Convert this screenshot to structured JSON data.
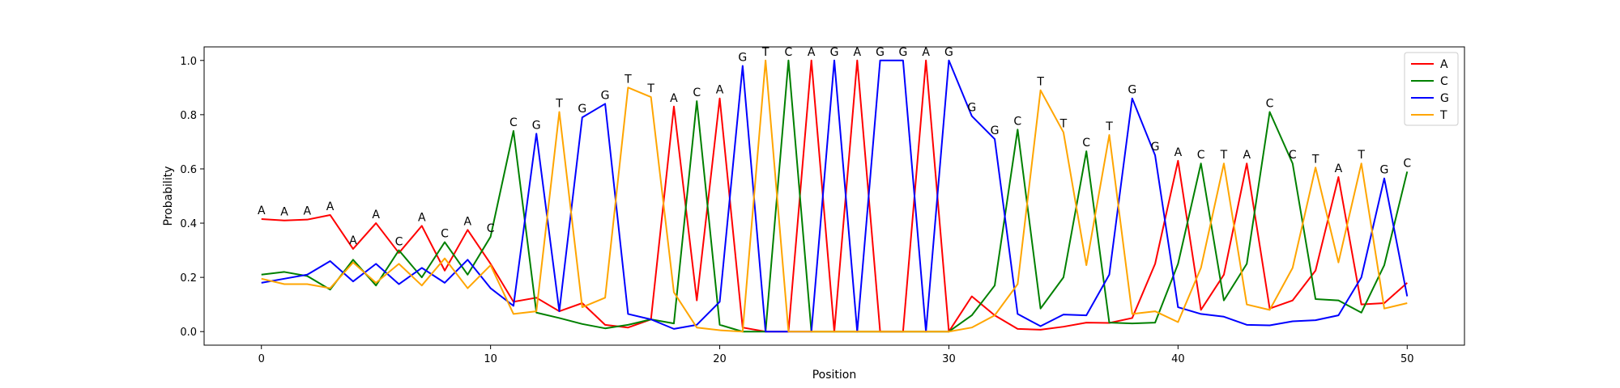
{
  "chart_data": {
    "type": "line",
    "xlabel": "Position",
    "ylabel": "Probability",
    "xlim": [
      -2.5,
      52.5
    ],
    "ylim": [
      -0.05,
      1.05
    ],
    "xticks": [
      0,
      10,
      20,
      30,
      40,
      50
    ],
    "yticks": [
      0.0,
      0.2,
      0.4,
      0.6,
      0.8,
      1.0
    ],
    "xtick_labels": [
      "0",
      "10",
      "20",
      "30",
      "40",
      "50"
    ],
    "ytick_labels": [
      "0.0",
      "0.2",
      "0.4",
      "0.6",
      "0.8",
      "1.0"
    ],
    "grid": false,
    "legend_position": "top-right",
    "x": [
      0,
      1,
      2,
      3,
      4,
      5,
      6,
      7,
      8,
      9,
      10,
      11,
      12,
      13,
      14,
      15,
      16,
      17,
      18,
      19,
      20,
      21,
      22,
      23,
      24,
      25,
      26,
      27,
      28,
      29,
      30,
      31,
      32,
      33,
      34,
      35,
      36,
      37,
      38,
      39,
      40,
      41,
      42,
      43,
      44,
      45,
      46,
      47,
      48,
      49,
      50
    ],
    "series": [
      {
        "name": "A",
        "color": "#ff0000",
        "values": [
          0.415,
          0.41,
          0.413,
          0.43,
          0.305,
          0.4,
          0.29,
          0.39,
          0.225,
          0.375,
          0.25,
          0.11,
          0.125,
          0.075,
          0.105,
          0.025,
          0.015,
          0.045,
          0.83,
          0.115,
          0.86,
          0.015,
          0.0,
          0.0,
          1.0,
          0.0,
          1.0,
          0.0,
          0.0,
          1.0,
          0.0,
          0.13,
          0.06,
          0.01,
          0.007,
          0.018,
          0.033,
          0.032,
          0.05,
          0.25,
          0.63,
          0.08,
          0.21,
          0.62,
          0.085,
          0.115,
          0.225,
          0.57,
          0.1,
          0.105,
          0.18
        ]
      },
      {
        "name": "C",
        "color": "#008000",
        "values": [
          0.21,
          0.22,
          0.205,
          0.155,
          0.265,
          0.17,
          0.3,
          0.2,
          0.33,
          0.21,
          0.35,
          0.74,
          0.07,
          0.05,
          0.028,
          0.012,
          0.025,
          0.045,
          0.03,
          0.85,
          0.025,
          0.0,
          0.0,
          1.0,
          0.0,
          0.0,
          0.0,
          0.0,
          0.0,
          0.0,
          0.0,
          0.06,
          0.17,
          0.745,
          0.085,
          0.2,
          0.665,
          0.033,
          0.03,
          0.033,
          0.25,
          0.62,
          0.115,
          0.25,
          0.81,
          0.62,
          0.12,
          0.115,
          0.07,
          0.245,
          0.59
        ]
      },
      {
        "name": "G",
        "color": "#0000ff",
        "values": [
          0.18,
          0.195,
          0.21,
          0.26,
          0.185,
          0.25,
          0.175,
          0.235,
          0.18,
          0.265,
          0.16,
          0.095,
          0.73,
          0.075,
          0.79,
          0.84,
          0.065,
          0.045,
          0.01,
          0.025,
          0.11,
          0.98,
          0.0,
          0.0,
          0.0,
          1.0,
          0.0,
          1.0,
          1.0,
          0.0,
          1.0,
          0.795,
          0.71,
          0.065,
          0.02,
          0.063,
          0.06,
          0.21,
          0.86,
          0.65,
          0.09,
          0.065,
          0.055,
          0.025,
          0.023,
          0.038,
          0.042,
          0.06,
          0.2,
          0.565,
          0.13
        ]
      },
      {
        "name": "T",
        "color": "#ffa500",
        "values": [
          0.195,
          0.175,
          0.175,
          0.16,
          0.255,
          0.18,
          0.25,
          0.17,
          0.27,
          0.16,
          0.245,
          0.065,
          0.075,
          0.81,
          0.09,
          0.125,
          0.9,
          0.865,
          0.145,
          0.015,
          0.005,
          0.0,
          1.0,
          0.0,
          0.0,
          0.0,
          0.0,
          0.0,
          0.0,
          0.0,
          0.0,
          0.015,
          0.06,
          0.175,
          0.89,
          0.735,
          0.245,
          0.725,
          0.065,
          0.075,
          0.035,
          0.235,
          0.62,
          0.1,
          0.08,
          0.235,
          0.605,
          0.255,
          0.62,
          0.085,
          0.105
        ]
      }
    ],
    "annotations": [
      "A",
      "A",
      "A",
      "A",
      "A",
      "A",
      "C",
      "A",
      "C",
      "A",
      "C",
      "C",
      "G",
      "T",
      "G",
      "G",
      "T",
      "T",
      "A",
      "C",
      "A",
      "G",
      "T",
      "C",
      "A",
      "G",
      "A",
      "G",
      "G",
      "A",
      "G",
      "G",
      "G",
      "C",
      "T",
      "T",
      "C",
      "T",
      "G",
      "G",
      "A",
      "C",
      "T",
      "A",
      "C",
      "C",
      "T",
      "A",
      "T",
      "G",
      "C"
    ]
  }
}
